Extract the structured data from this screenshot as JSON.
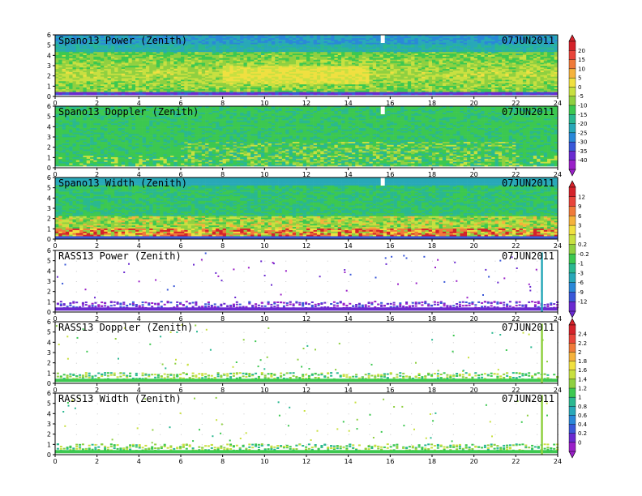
{
  "chart_data": [
    {
      "type": "heatmap",
      "title": "Spano13 Power (Zenith)",
      "date": "07JUN2011",
      "xticks": [
        "0",
        "2",
        "4",
        "6",
        "8",
        "10",
        "12",
        "14",
        "16",
        "18",
        "20",
        "22",
        "24"
      ],
      "yticks": [
        "0",
        "1",
        "2",
        "3",
        "4",
        "5",
        "6"
      ],
      "xlim": [
        0,
        24
      ],
      "ylim": [
        0,
        6
      ],
      "field": "power"
    },
    {
      "type": "heatmap",
      "title": "Spano13 Doppler (Zenith)",
      "date": "07JUN2011",
      "xticks": [
        "0",
        "2",
        "4",
        "6",
        "8",
        "10",
        "12",
        "14",
        "16",
        "18",
        "20",
        "22",
        "24"
      ],
      "yticks": [
        "0",
        "1",
        "2",
        "3",
        "4",
        "5",
        "6"
      ],
      "xlim": [
        0,
        24
      ],
      "ylim": [
        0,
        6
      ],
      "field": "doppler"
    },
    {
      "type": "heatmap",
      "title": "Spano13 Width (Zenith)",
      "date": "07JUN2011",
      "xticks": [
        "0",
        "2",
        "4",
        "6",
        "8",
        "10",
        "12",
        "14",
        "16",
        "18",
        "20",
        "22",
        "24"
      ],
      "yticks": [
        "0",
        "1",
        "2",
        "3",
        "4",
        "5",
        "6"
      ],
      "xlim": [
        0,
        24
      ],
      "ylim": [
        0,
        6
      ],
      "field": "width"
    },
    {
      "type": "heatmap",
      "title": "RASS13 Power (Zenith)",
      "date": "07JUN2011",
      "xticks": [
        "0",
        "2",
        "4",
        "6",
        "8",
        "10",
        "12",
        "14",
        "16",
        "18",
        "20",
        "22",
        "24"
      ],
      "yticks": [
        "0",
        "1",
        "2",
        "3",
        "4",
        "5",
        "6"
      ],
      "xlim": [
        0,
        24
      ],
      "ylim": [
        0,
        6
      ],
      "field": "rass_power"
    },
    {
      "type": "heatmap",
      "title": "RASS13 Doppler (Zenith)",
      "date": "07JUN2011",
      "xticks": [
        "0",
        "2",
        "4",
        "6",
        "8",
        "10",
        "12",
        "14",
        "16",
        "18",
        "20",
        "22",
        "24"
      ],
      "yticks": [
        "0",
        "1",
        "2",
        "3",
        "4",
        "5",
        "6"
      ],
      "xlim": [
        0,
        24
      ],
      "ylim": [
        0,
        6
      ],
      "field": "rass_doppler"
    },
    {
      "type": "heatmap",
      "title": "RASS13 Width (Zenith)",
      "date": "07JUN2011",
      "xticks": [
        "0",
        "2",
        "4",
        "6",
        "8",
        "10",
        "12",
        "14",
        "16",
        "18",
        "20",
        "22",
        "24"
      ],
      "yticks": [
        "0",
        "1",
        "2",
        "3",
        "4",
        "5",
        "6"
      ],
      "xlim": [
        0,
        24
      ],
      "ylim": [
        0,
        6
      ],
      "field": "rass_width"
    }
  ],
  "colorbars": [
    {
      "labels": [
        "20",
        "15",
        "10",
        "5",
        "0",
        "-5",
        "-10",
        "-15",
        "-20",
        "-25",
        "-30",
        "-35",
        "-40"
      ],
      "colors": [
        "#d4222a",
        "#e8443a",
        "#f07a3a",
        "#f5b23c",
        "#f0e040",
        "#c8e040",
        "#8fd040",
        "#3cc850",
        "#2ab890",
        "#28a8b8",
        "#2a88d8",
        "#3a58d8",
        "#6a2ad0",
        "#9a20c8"
      ]
    },
    {
      "labels": [
        "12",
        "9",
        "6",
        "3",
        "1",
        "0.2",
        "-0.2",
        "-1",
        "-3",
        "-6",
        "-9",
        "-12"
      ],
      "colors": [
        "#d4222a",
        "#e8443a",
        "#f07a3a",
        "#f5b23c",
        "#f0e040",
        "#c8e040",
        "#8fd040",
        "#3cc850",
        "#2ab890",
        "#28a8b8",
        "#2a88d8",
        "#3a58d8",
        "#6a2ad0"
      ]
    },
    {
      "labels": [
        "2.4",
        "2.2",
        "2",
        "1.8",
        "1.6",
        "1.4",
        "1.2",
        "1",
        "0.8",
        "0.6",
        "0.4",
        "0.2",
        "0"
      ],
      "colors": [
        "#d4222a",
        "#e8443a",
        "#f07a3a",
        "#f5b23c",
        "#f0e040",
        "#c8e040",
        "#8fd040",
        "#3cc850",
        "#2ab890",
        "#28a8b8",
        "#2a88d8",
        "#3a58d8",
        "#6a2ad0",
        "#9a20c8"
      ]
    }
  ]
}
